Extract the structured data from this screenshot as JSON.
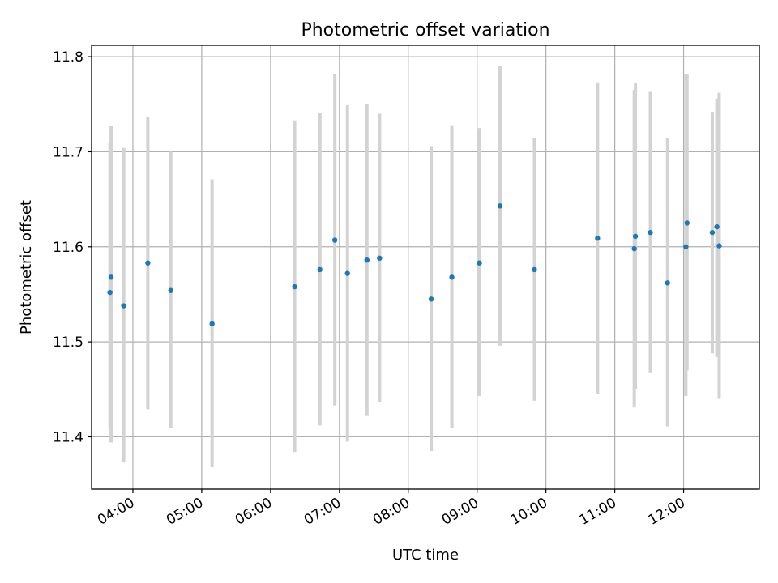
{
  "chart_data": {
    "type": "scatter",
    "title": "Photometric offset variation",
    "xlabel": "UTC time",
    "ylabel": "Photometric offset",
    "x_axis_kind": "time",
    "xlim": [
      "03:24",
      "13:06"
    ],
    "ylim": [
      11.345,
      11.812
    ],
    "yticks": [
      11.4,
      11.5,
      11.6,
      11.7,
      11.8
    ],
    "ytick_labels": [
      "11.4",
      "11.5",
      "11.6",
      "11.7",
      "11.8"
    ],
    "xticks": [
      "04:00",
      "05:00",
      "06:00",
      "07:00",
      "08:00",
      "09:00",
      "10:00",
      "11:00",
      "12:00"
    ],
    "xtick_labels": [
      "04:00",
      "05:00",
      "06:00",
      "07:00",
      "08:00",
      "09:00",
      "10:00",
      "11:00",
      "12:00"
    ],
    "grid": true,
    "colors": {
      "points": "#1f77b4",
      "error_bars": "#d3d3d3"
    },
    "series": [
      {
        "points": [
          {
            "x": "03:40",
            "y": 11.552,
            "err_low": 11.41,
            "err_high": 11.71
          },
          {
            "x": "03:41",
            "y": 11.568,
            "err_low": 11.394,
            "err_high": 11.727
          },
          {
            "x": "03:52",
            "y": 11.538,
            "err_low": 11.373,
            "err_high": 11.704
          },
          {
            "x": "04:13",
            "y": 11.583,
            "err_low": 11.429,
            "err_high": 11.737
          },
          {
            "x": "04:33",
            "y": 11.554,
            "err_low": 11.409,
            "err_high": 11.7
          },
          {
            "x": "05:09",
            "y": 11.519,
            "err_low": 11.368,
            "err_high": 11.671
          },
          {
            "x": "06:21",
            "y": 11.558,
            "err_low": 11.384,
            "err_high": 11.733
          },
          {
            "x": "06:43",
            "y": 11.576,
            "err_low": 11.412,
            "err_high": 11.741
          },
          {
            "x": "06:56",
            "y": 11.607,
            "err_low": 11.433,
            "err_high": 11.782
          },
          {
            "x": "07:07",
            "y": 11.572,
            "err_low": 11.395,
            "err_high": 11.749
          },
          {
            "x": "07:24",
            "y": 11.586,
            "err_low": 11.422,
            "err_high": 11.75
          },
          {
            "x": "07:35",
            "y": 11.588,
            "err_low": 11.437,
            "err_high": 11.74
          },
          {
            "x": "08:20",
            "y": 11.545,
            "err_low": 11.385,
            "err_high": 11.706
          },
          {
            "x": "08:38",
            "y": 11.568,
            "err_low": 11.409,
            "err_high": 11.728
          },
          {
            "x": "09:02",
            "y": 11.583,
            "err_low": 11.443,
            "err_high": 11.725
          },
          {
            "x": "09:20",
            "y": 11.643,
            "err_low": 11.496,
            "err_high": 11.79
          },
          {
            "x": "09:50",
            "y": 11.576,
            "err_low": 11.438,
            "err_high": 11.714
          },
          {
            "x": "10:45",
            "y": 11.609,
            "err_low": 11.445,
            "err_high": 11.773
          },
          {
            "x": "11:17",
            "y": 11.598,
            "err_low": 11.431,
            "err_high": 11.765
          },
          {
            "x": "11:18",
            "y": 11.611,
            "err_low": 11.45,
            "err_high": 11.772
          },
          {
            "x": "11:31",
            "y": 11.615,
            "err_low": 11.467,
            "err_high": 11.763
          },
          {
            "x": "11:46",
            "y": 11.562,
            "err_low": 11.411,
            "err_high": 11.714
          },
          {
            "x": "12:02",
            "y": 11.6,
            "err_low": 11.443,
            "err_high": 11.782
          },
          {
            "x": "12:03",
            "y": 11.625,
            "err_low": 11.47,
            "err_high": 11.781
          },
          {
            "x": "12:25",
            "y": 11.615,
            "err_low": 11.488,
            "err_high": 11.742
          },
          {
            "x": "12:29",
            "y": 11.621,
            "err_low": 11.484,
            "err_high": 11.756
          },
          {
            "x": "12:31",
            "y": 11.601,
            "err_low": 11.44,
            "err_high": 11.762
          }
        ]
      }
    ]
  }
}
